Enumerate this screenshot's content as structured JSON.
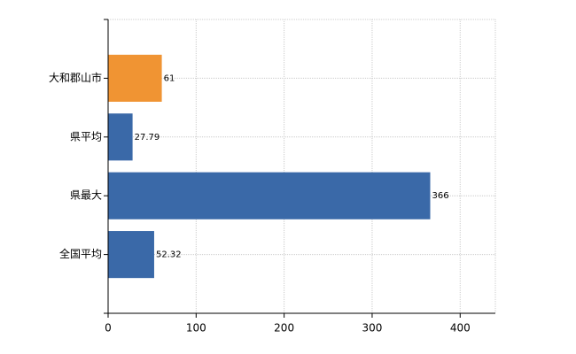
{
  "chart_data": {
    "type": "bar",
    "orientation": "horizontal",
    "categories": [
      "大和郡山市",
      "県平均",
      "県最大",
      "全国平均"
    ],
    "values": [
      61,
      27.79,
      366,
      52.32
    ],
    "colors": [
      "#f09433",
      "#3a69a8",
      "#3a69a8",
      "#3a69a8"
    ],
    "xlim": [
      0,
      440
    ],
    "xticks": [
      0,
      100,
      200,
      300,
      400
    ],
    "grid": true
  }
}
